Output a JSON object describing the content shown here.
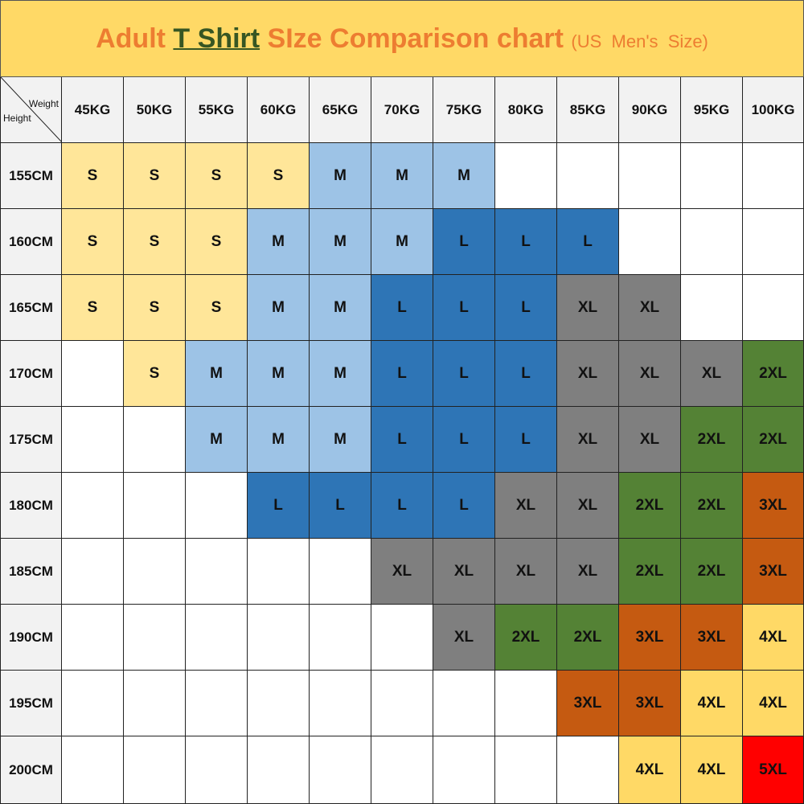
{
  "chart_data": {
    "type": "table",
    "title": {
      "part1": "Adult ",
      "highlight": "T Shirt",
      "part2": " SIze Comparison chart ",
      "subtitle": "(US  Men's  Size)"
    },
    "corner": {
      "weight_label": "Weight",
      "height_label": "Height"
    },
    "columns": [
      "45KG",
      "50KG",
      "55KG",
      "60KG",
      "65KG",
      "70KG",
      "75KG",
      "80KG",
      "85KG",
      "90KG",
      "95KG",
      "100KG"
    ],
    "rows": [
      {
        "height": "155CM",
        "sizes": [
          "S",
          "S",
          "S",
          "S",
          "M",
          "M",
          "M",
          "",
          "",
          "",
          "",
          ""
        ]
      },
      {
        "height": "160CM",
        "sizes": [
          "S",
          "S",
          "S",
          "M",
          "M",
          "M",
          "L",
          "L",
          "L",
          "",
          "",
          ""
        ]
      },
      {
        "height": "165CM",
        "sizes": [
          "S",
          "S",
          "S",
          "M",
          "M",
          "L",
          "L",
          "L",
          "XL",
          "XL",
          "",
          ""
        ]
      },
      {
        "height": "170CM",
        "sizes": [
          "",
          "S",
          "M",
          "M",
          "M",
          "L",
          "L",
          "L",
          "XL",
          "XL",
          "XL",
          "2XL"
        ]
      },
      {
        "height": "175CM",
        "sizes": [
          "",
          "",
          "M",
          "M",
          "M",
          "L",
          "L",
          "L",
          "XL",
          "XL",
          "2XL",
          "2XL"
        ]
      },
      {
        "height": "180CM",
        "sizes": [
          "",
          "",
          "",
          "L",
          "L",
          "L",
          "L",
          "XL",
          "XL",
          "2XL",
          "2XL",
          "3XL"
        ]
      },
      {
        "height": "185CM",
        "sizes": [
          "",
          "",
          "",
          "",
          "",
          "XL",
          "XL",
          "XL",
          "XL",
          "2XL",
          "2XL",
          "3XL"
        ]
      },
      {
        "height": "190CM",
        "sizes": [
          "",
          "",
          "",
          "",
          "",
          "",
          "XL",
          "2XL",
          "2XL",
          "3XL",
          "3XL",
          "4XL"
        ]
      },
      {
        "height": "195CM",
        "sizes": [
          "",
          "",
          "",
          "",
          "",
          "",
          "",
          "",
          "3XL",
          "3XL",
          "4XL",
          "4XL"
        ]
      },
      {
        "height": "200CM",
        "sizes": [
          "",
          "",
          "",
          "",
          "",
          "",
          "",
          "",
          "",
          "4XL",
          "4XL",
          "5XL"
        ]
      }
    ],
    "size_colors": {
      "S": "#FFE699",
      "M": "#9DC3E6",
      "L": "#2E75B6",
      "XL": "#7F7F7F",
      "2XL": "#548235",
      "3XL": "#C55A11",
      "4XL": "#FFD966",
      "5XL": "#FF0000"
    },
    "title_band_color": "#FFD966"
  }
}
